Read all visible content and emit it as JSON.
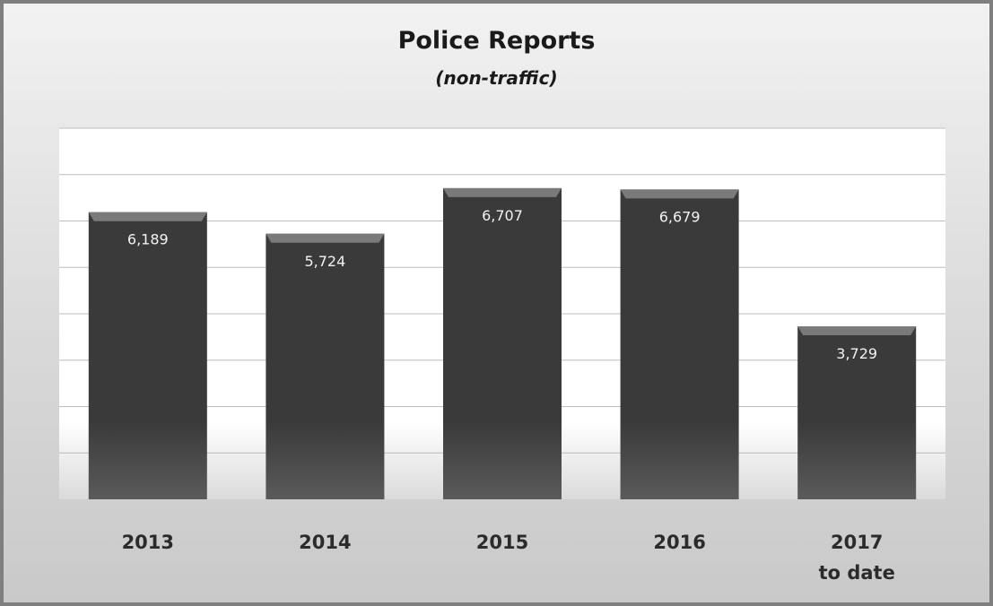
{
  "chart_data": {
    "type": "bar",
    "title": "Police Reports",
    "subtitle": "(non-traffic)",
    "categories": [
      [
        "2013"
      ],
      [
        "2014"
      ],
      [
        "2015"
      ],
      [
        "2016"
      ],
      [
        "2017",
        "to date"
      ]
    ],
    "values": [
      6189,
      5724,
      6707,
      6679,
      3729
    ],
    "data_labels": [
      "6,189",
      "5,724",
      "6,707",
      "6,679",
      "3,729"
    ],
    "ylim": [
      0,
      8000
    ],
    "grid": true,
    "colors": {
      "bar": "#3a3a3a",
      "bar_top": "#7a7a7a",
      "grid": "#bdbdbd"
    }
  }
}
